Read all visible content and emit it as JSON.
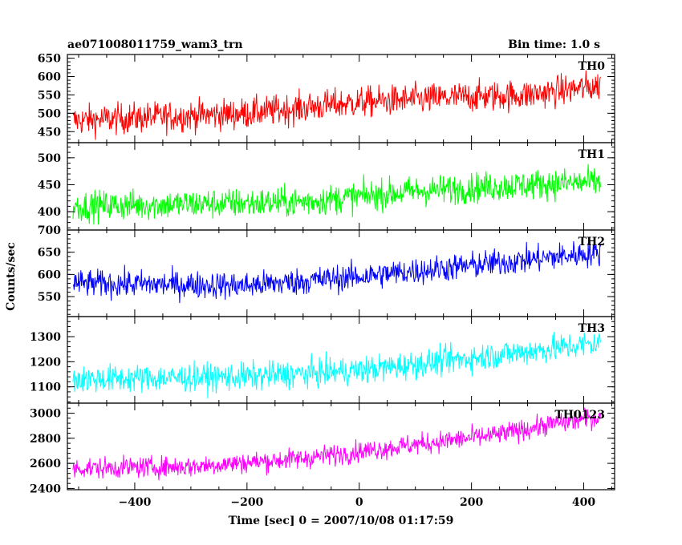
{
  "header": {
    "title": "ae071008011759_wam3_trn",
    "bin_time": "Bin time: 1.0 s"
  },
  "chart_data": {
    "type": "line",
    "xlabel": "Time [sec] 0 = 2007/10/08 01:17:59",
    "ylabel": "Counts/sec",
    "xlim": [
      -520,
      455
    ],
    "xticks": [
      -400,
      -200,
      0,
      200,
      400
    ],
    "x_range_data": [
      -510,
      430
    ],
    "panels": [
      {
        "name": "TH0",
        "color": "#ff0000",
        "ylim": [
          420,
          660
        ],
        "yticks": [
          450,
          500,
          550,
          600,
          650
        ],
        "trend": [
          [
            -510,
            480
          ],
          [
            -200,
            500
          ],
          [
            0,
            530
          ],
          [
            200,
            545
          ],
          [
            300,
            550
          ],
          [
            430,
            575
          ]
        ],
        "noise": 30
      },
      {
        "name": "TH1",
        "color": "#00ff00",
        "ylim": [
          366,
          528
        ],
        "yticks": [
          400,
          450,
          500
        ],
        "trend": [
          [
            -510,
            410
          ],
          [
            -100,
            418
          ],
          [
            100,
            438
          ],
          [
            300,
            450
          ],
          [
            430,
            455
          ]
        ],
        "noise": 20
      },
      {
        "name": "TH2",
        "color": "#0000ff",
        "ylim": [
          505,
          700
        ],
        "yticks": [
          550,
          600,
          650,
          700
        ],
        "trend": [
          [
            -510,
            580
          ],
          [
            -200,
            575
          ],
          [
            0,
            595
          ],
          [
            200,
            620
          ],
          [
            430,
            650
          ]
        ],
        "noise": 22
      },
      {
        "name": "TH3",
        "color": "#00ffff",
        "ylim": [
          1035,
          1380
        ],
        "yticks": [
          1100,
          1200,
          1300
        ],
        "trend": [
          [
            -510,
            1130
          ],
          [
            -200,
            1140
          ],
          [
            0,
            1165
          ],
          [
            200,
            1215
          ],
          [
            430,
            1275
          ]
        ],
        "noise": 40
      },
      {
        "name": "TH0123",
        "color": "#ff00ff",
        "ylim": [
          2390,
          3080
        ],
        "yticks": [
          2400,
          2600,
          2800,
          3000
        ],
        "trend": [
          [
            -510,
            2560
          ],
          [
            -300,
            2575
          ],
          [
            -100,
            2640
          ],
          [
            100,
            2750
          ],
          [
            250,
            2830
          ],
          [
            350,
            2920
          ],
          [
            430,
            2970
          ]
        ],
        "noise": 60
      }
    ]
  }
}
